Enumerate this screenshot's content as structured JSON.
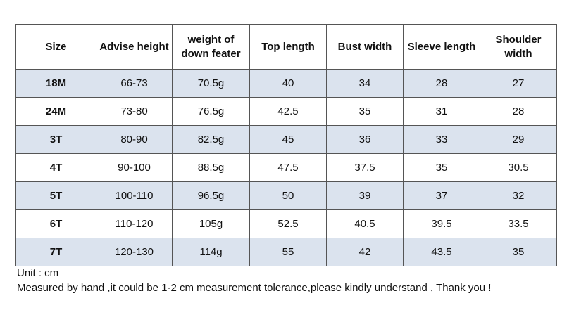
{
  "table": {
    "headers": [
      "Size",
      "Advise height",
      "weight of down feater",
      "Top length",
      "Bust width",
      "Sleeve length",
      "Shoulder width"
    ],
    "rows": [
      [
        "18M",
        "66-73",
        "70.5g",
        "40",
        "34",
        "28",
        "27"
      ],
      [
        "24M",
        "73-80",
        "76.5g",
        "42.5",
        "35",
        "31",
        "28"
      ],
      [
        "3T",
        "80-90",
        "82.5g",
        "45",
        "36",
        "33",
        "29"
      ],
      [
        "4T",
        "90-100",
        "88.5g",
        "47.5",
        "37.5",
        "35",
        "30.5"
      ],
      [
        "5T",
        "100-110",
        "96.5g",
        "50",
        "39",
        "37",
        "32"
      ],
      [
        "6T",
        "110-120",
        "105g",
        "52.5",
        "40.5",
        "39.5",
        "33.5"
      ],
      [
        "7T",
        "120-130",
        "114g",
        "55",
        "42",
        "43.5",
        "35"
      ]
    ]
  },
  "notes": {
    "unit": "Unit : cm",
    "measure": "Measured by hand ,it could be 1-2 cm measurement tolerance,please kindly understand , Thank you !"
  },
  "colors": {
    "shaded_row": "#dbe3ee",
    "border": "#555555"
  }
}
